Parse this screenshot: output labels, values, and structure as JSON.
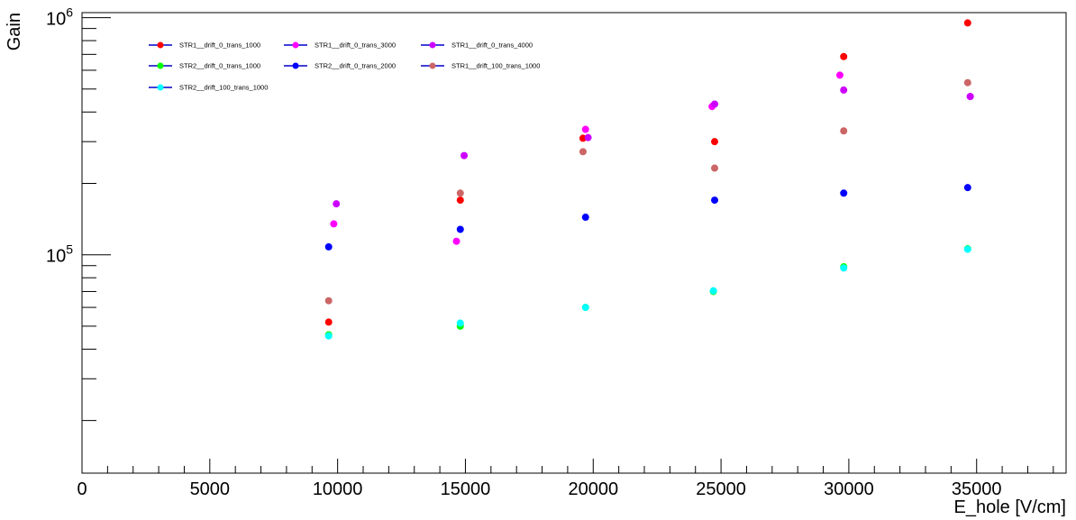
{
  "chart_data": {
    "type": "scatter",
    "xlabel": "E_hole [V/cm]",
    "ylabel": "Gain",
    "xlim": [
      0,
      38500
    ],
    "ylim": [
      12000,
      1050000
    ],
    "yscale": "log",
    "x_ticks": [
      0,
      5000,
      10000,
      15000,
      20000,
      25000,
      30000,
      35000
    ],
    "x_tick_labels": [
      "0",
      "5000",
      "10000",
      "15000",
      "20000",
      "25000",
      "30000",
      "35000"
    ],
    "y_decade_labels": [
      {
        "value": 100000,
        "base": "10",
        "exp": "5"
      },
      {
        "value": 1000000,
        "base": "10",
        "exp": "6"
      }
    ],
    "grid": false,
    "legend_position": "top-left",
    "series": [
      {
        "name": "STR1__drift_0_trans_1000",
        "color": "#ff0000",
        "line_color": "#0000cc",
        "points": [
          [
            9650,
            52000
          ],
          [
            14800,
            170000
          ],
          [
            19600,
            310000
          ],
          [
            24750,
            300000
          ],
          [
            29800,
            685000
          ],
          [
            34650,
            950000
          ]
        ]
      },
      {
        "name": "STR1__drift_0_trans_3000",
        "color": "#ff00ff",
        "line_color": "#0000cc",
        "points": [
          [
            9850,
            135000
          ],
          [
            14650,
            114000
          ],
          [
            19700,
            338000
          ],
          [
            24650,
            422000
          ],
          [
            29650,
            572000
          ],
          [
            34750,
            465000
          ]
        ]
      },
      {
        "name": "STR1__drift_0_trans_4000",
        "color": "#cc00ff",
        "line_color": "#0000cc",
        "points": [
          [
            9950,
            164000
          ],
          [
            14950,
            262000
          ],
          [
            19800,
            312000
          ],
          [
            24750,
            432000
          ],
          [
            29800,
            495000
          ],
          [
            34750,
            465000
          ]
        ]
      },
      {
        "name": "STR2__drift_0_trans_1000",
        "color": "#00ff00",
        "line_color": "#0000cc",
        "points": [
          [
            9650,
            46000
          ],
          [
            14800,
            50000
          ],
          [
            19700,
            60000
          ],
          [
            24700,
            70000
          ],
          [
            29800,
            89000
          ],
          [
            34650,
            106000
          ]
        ]
      },
      {
        "name": "STR2__drift_0_trans_2000",
        "color": "#0000ff",
        "line_color": "#0000cc",
        "points": [
          [
            9650,
            108000
          ],
          [
            14800,
            128000
          ],
          [
            19700,
            144000
          ],
          [
            24750,
            170000
          ],
          [
            29800,
            182000
          ],
          [
            34650,
            192000
          ]
        ]
      },
      {
        "name": "STR1__drift_100_trans_1000",
        "color": "#cc6666",
        "line_color": "#0000cc",
        "points": [
          [
            9650,
            64000
          ],
          [
            14800,
            182000
          ],
          [
            19600,
            272000
          ],
          [
            24750,
            232000
          ],
          [
            29800,
            333000
          ],
          [
            34650,
            532000
          ]
        ]
      },
      {
        "name": "STR2__drift_100_trans_1000",
        "color": "#00ffff",
        "line_color": "#0000cc",
        "points": [
          [
            9650,
            45500
          ],
          [
            14800,
            51500
          ],
          [
            19700,
            60000
          ],
          [
            24700,
            70500
          ],
          [
            29800,
            88000
          ],
          [
            34650,
            105500
          ]
        ]
      }
    ]
  }
}
